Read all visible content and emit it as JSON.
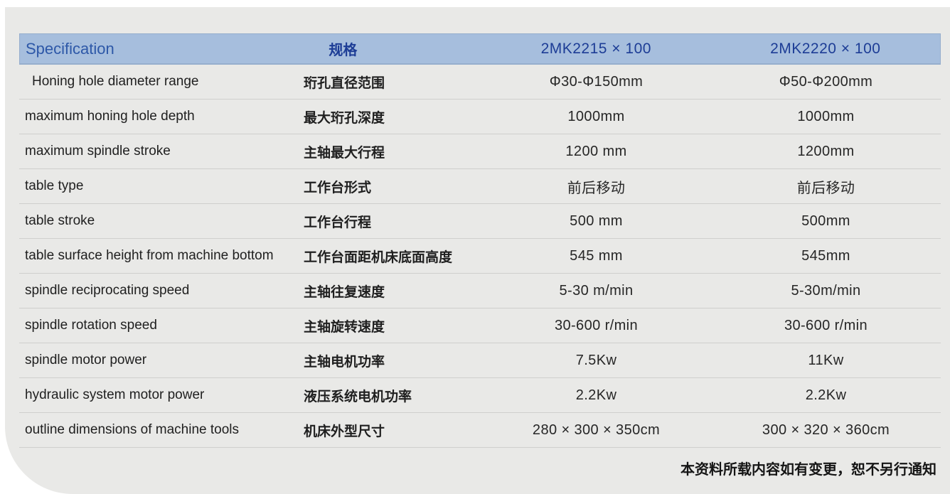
{
  "table": {
    "headers": {
      "col_english": "Specification",
      "col_chinese": "规格",
      "col_model_a": "2MK2215 × 100",
      "col_model_b": "2MK2220 × 100"
    },
    "rows": [
      {
        "en": "Honing hole diameter range",
        "zh": "珩孔直径范围",
        "a": "Φ30-Φ150mm",
        "b": "Φ50-Φ200mm"
      },
      {
        "en": "maximum honing hole depth",
        "zh": "最大珩孔深度",
        "a": "1000mm",
        "b": "1000mm"
      },
      {
        "en": "maximum spindle stroke",
        "zh": "主轴最大行程",
        "a": "1200 mm",
        "b": "1200mm"
      },
      {
        "en": "table type",
        "zh": "工作台形式",
        "a": "前后移动",
        "b": "前后移动"
      },
      {
        "en": "table stroke",
        "zh": "工作台行程",
        "a": "500 mm",
        "b": "500mm"
      },
      {
        "en": "table surface height from machine bottom",
        "zh": "工作台面距机床底面高度",
        "a": "545 mm",
        "b": "545mm"
      },
      {
        "en": "spindle reciprocating speed",
        "zh": "主轴往复速度",
        "a": "5-30 m/min",
        "b": "5-30m/min"
      },
      {
        "en": "spindle rotation speed",
        "zh": "主轴旋转速度",
        "a": "30-600 r/min",
        "b": "30-600 r/min"
      },
      {
        "en": "spindle motor power",
        "zh": "主轴电机功率",
        "a": "7.5Kw",
        "b": "11Kw"
      },
      {
        "en": "hydraulic system motor power",
        "zh": "液压系统电机功率",
        "a": "2.2Kw",
        "b": "2.2Kw"
      },
      {
        "en": "outline dimensions of machine tools",
        "zh": "机床外型尺寸",
        "a": "280 × 300 × 350cm",
        "b": "300 × 320 × 360cm"
      }
    ],
    "footer_note": "本资料所载内容如有变更，恕不另行通知"
  },
  "colors": {
    "header_bg": "#a6bedd",
    "header_text_en": "#2d58a8",
    "header_text_zh": "#1d3d96",
    "card_bg": "#e9e9e7",
    "divider": "#cfcfcd",
    "body_text": "#1f1f1f"
  }
}
